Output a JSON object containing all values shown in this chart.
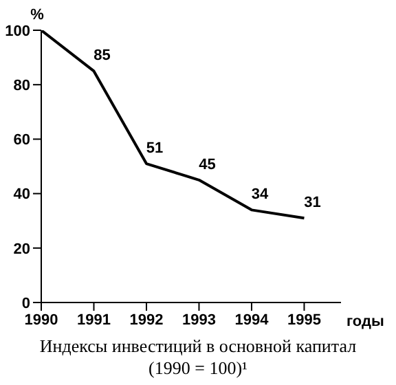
{
  "chart_data": {
    "type": "line",
    "title": "Индексы инвестиций в основной капитал",
    "subtitle": "(1990 = 100)¹",
    "xlabel": "годы",
    "ylabel": "%",
    "x": [
      1990,
      1991,
      1992,
      1993,
      1994,
      1995
    ],
    "series": [
      {
        "color": "#000000",
        "values": [
          100,
          85,
          51,
          45,
          34,
          31
        ],
        "value_labels": [
          null,
          "85",
          "51",
          "45",
          "34",
          "31"
        ]
      }
    ],
    "xlim": [
      1990,
      1995.7
    ],
    "xticks": [
      1990,
      1991,
      1992,
      1993,
      1994,
      1995
    ],
    "ylim": [
      0,
      100
    ],
    "yticks": [
      0,
      20,
      40,
      60,
      80,
      100
    ],
    "line_style": "solid"
  }
}
